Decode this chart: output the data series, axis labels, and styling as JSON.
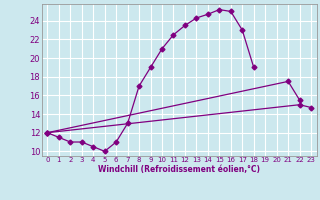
{
  "xlabel": "Windchill (Refroidissement éolien,°C)",
  "bg_color": "#cce8ee",
  "line_color": "#800080",
  "grid_color": "#ffffff",
  "xlim": [
    -0.5,
    23.5
  ],
  "ylim": [
    9.5,
    25.8
  ],
  "xticks": [
    0,
    1,
    2,
    3,
    4,
    5,
    6,
    7,
    8,
    9,
    10,
    11,
    12,
    13,
    14,
    15,
    16,
    17,
    18,
    19,
    20,
    21,
    22,
    23
  ],
  "yticks": [
    10,
    12,
    14,
    16,
    18,
    20,
    22,
    24
  ],
  "curve1_x": [
    0,
    1,
    2,
    3,
    4,
    5,
    6,
    7,
    8,
    9,
    10,
    11,
    12,
    13,
    14,
    15,
    16,
    17,
    18
  ],
  "curve1_y": [
    12.0,
    11.5,
    11.0,
    11.0,
    10.5,
    10.0,
    11.0,
    13.0,
    17.0,
    19.0,
    21.0,
    22.5,
    23.5,
    24.3,
    24.7,
    25.2,
    25.0,
    23.0,
    19.0
  ],
  "curve2_x": [
    0,
    21,
    22
  ],
  "curve2_y": [
    12.0,
    17.5,
    15.5
  ],
  "curve3_x": [
    0,
    22,
    23
  ],
  "curve3_y": [
    12.0,
    15.0,
    14.7
  ],
  "xlabel_fontsize": 5.5,
  "xtick_fontsize": 5.0,
  "ytick_fontsize": 6.0
}
